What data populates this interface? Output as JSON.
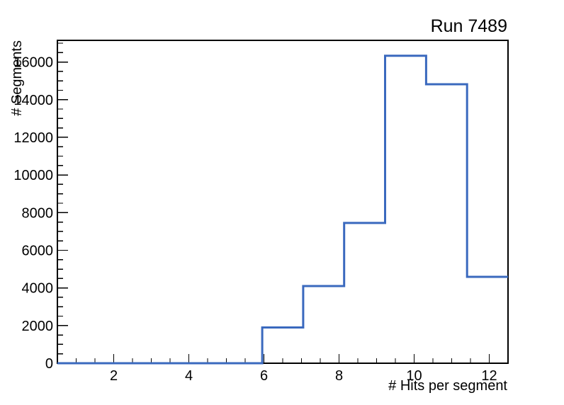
{
  "title": "Run 7489",
  "colors": {
    "histogram_line": "#3a69be",
    "frame": "#000000",
    "text": "#000000",
    "background": "#ffffff"
  },
  "x_axis": {
    "title": "# Hits per segment",
    "range": [
      0.5,
      12.5
    ],
    "major_ticks": [
      2,
      4,
      6,
      8,
      10,
      12
    ],
    "tick_labels": [
      "2",
      "4",
      "6",
      "8",
      "10",
      "12"
    ],
    "minor_tick_step": 0.5
  },
  "y_axis": {
    "title": "# Segments",
    "range": [
      0,
      17150
    ],
    "major_ticks": [
      0,
      2000,
      4000,
      6000,
      8000,
      10000,
      12000,
      14000,
      16000
    ],
    "tick_labels": [
      "0",
      "2000",
      "4000",
      "6000",
      "8000",
      "10000",
      "12000",
      "14000",
      "16000"
    ],
    "minor_tick_step": 500
  },
  "chart_data": {
    "type": "histogram-step",
    "title": "Run 7489",
    "xlabel": "# Hits per segment",
    "ylabel": "# Segments",
    "xlim": [
      0.5,
      12.5
    ],
    "ylim": [
      0,
      17150
    ],
    "n_bins": 11,
    "bin_edges": [
      0.5,
      1.5909,
      2.6818,
      3.7727,
      4.8636,
      5.9545,
      7.0455,
      8.1364,
      9.2273,
      10.3182,
      11.4091,
      12.5
    ],
    "values": [
      0,
      0,
      0,
      0,
      0,
      1900,
      4100,
      7450,
      16330,
      14820,
      4590
    ],
    "grid": false,
    "legend": null
  }
}
